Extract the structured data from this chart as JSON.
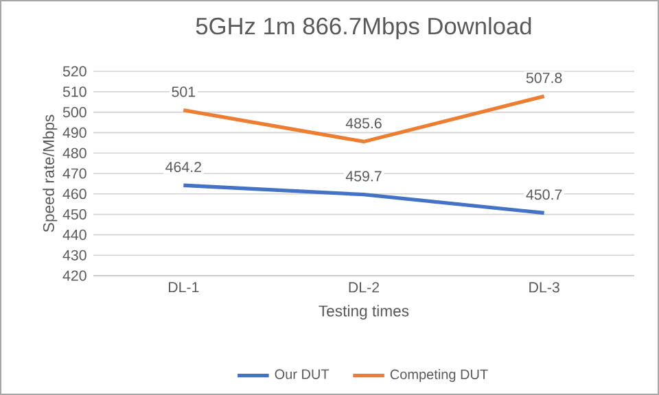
{
  "chart_data": {
    "type": "line",
    "title": "5GHz 1m 866.7Mbps Download",
    "xlabel": "Testing times",
    "ylabel": "Speed rate/Mbps",
    "categories": [
      "DL-1",
      "DL-2",
      "DL-3"
    ],
    "series": [
      {
        "name": "Our DUT",
        "color": "#4472c4",
        "values": [
          464.2,
          459.7,
          450.7
        ]
      },
      {
        "name": "Competing DUT",
        "color": "#ed7d31",
        "values": [
          501,
          485.6,
          507.8
        ]
      }
    ],
    "ylim": [
      420,
      520
    ],
    "yticks": [
      420,
      430,
      440,
      450,
      460,
      470,
      480,
      490,
      500,
      510,
      520
    ],
    "grid": "y",
    "legend": "bottom",
    "data_labels": true,
    "marker": "none",
    "line_style": "solid"
  }
}
